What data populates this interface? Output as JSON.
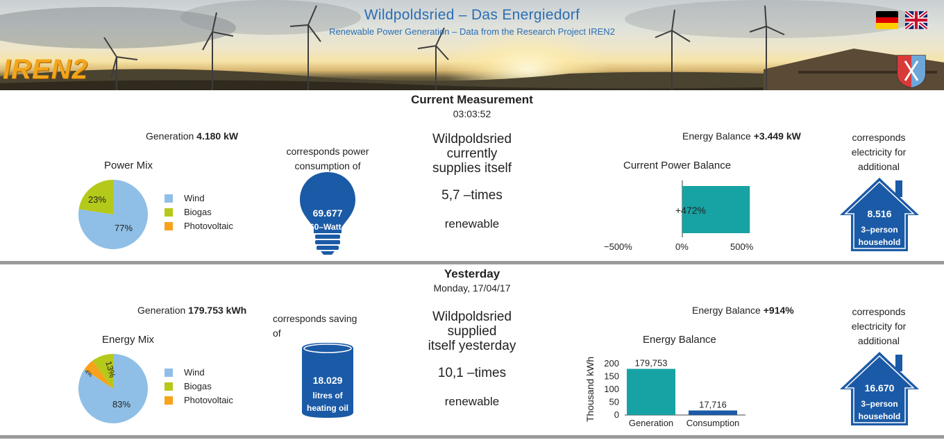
{
  "header": {
    "title": "Wildpoldsried – Das Energiedorf",
    "subtitle": "Renewable Power Generation – Data from the Research Project IREN2",
    "logo_text": "IREN2",
    "languages": [
      "de-flag-icon",
      "uk-flag-icon"
    ]
  },
  "current": {
    "section_title": "Current Measurement",
    "time": "03:03:52",
    "generation_label": "Generation",
    "generation_value": "4.180 kW",
    "mix_title": "Power Mix",
    "pie": [
      {
        "name": "Wind",
        "percent": 77,
        "label": "77%",
        "color": "#8fbfe6"
      },
      {
        "name": "Biogas",
        "percent": 23,
        "label": "23%",
        "color": "#b5c91a"
      },
      {
        "name": "Photovoltaic",
        "percent": 0,
        "label": "",
        "color": "#f7a21b"
      }
    ],
    "legend": [
      "Wind",
      "Biogas",
      "Photovoltaic"
    ],
    "equiv_text_1": "corresponds power",
    "equiv_text_2": "consumption of",
    "bulb_value": "69.677",
    "bulb_unit": "60–Watt",
    "supply_1": "Wildpoldsried",
    "supply_2": "currently",
    "supply_3": "supplies itself",
    "times": "5,7 –times",
    "renewable": "renewable",
    "balance_label": "Energy Balance",
    "balance_value": "+3.449 kW",
    "balance_title": "Current Power Balance",
    "balance_bar_percent": 472,
    "balance_bar_label": "+472%",
    "balance_ticks": [
      "−500%",
      "0%",
      "500%"
    ],
    "house_text_1": "corresponds",
    "house_text_2": "electricity for",
    "house_text_3": "additional",
    "house_value": "8.516",
    "house_unit_1": "3–person",
    "house_unit_2": "household"
  },
  "yesterday": {
    "section_title": "Yesterday",
    "date": "Monday, 17/04/17",
    "generation_label": "Generation",
    "generation_value": "179.753 kWh",
    "mix_title": "Energy Mix",
    "pie": [
      {
        "name": "Wind",
        "percent": 83,
        "label": "83%",
        "color": "#8fbfe6"
      },
      {
        "name": "Biogas",
        "percent": 13,
        "label": "13%",
        "color": "#b5c91a"
      },
      {
        "name": "Photovoltaic",
        "percent": 4,
        "label": "4%",
        "color": "#f7a21b"
      }
    ],
    "legend": [
      "Wind",
      "Biogas",
      "Photovoltaic"
    ],
    "equiv_text_1": "corresponds saving",
    "equiv_text_2": "of",
    "barrel_value": "18.029",
    "barrel_unit_1": "litres of",
    "barrel_unit_2": "heating oil",
    "supply_1": "Wildpoldsried",
    "supply_2": "supplied",
    "supply_3": "itself yesterday",
    "times": "10,1 –times",
    "renewable": "renewable",
    "balance_label": "Energy Balance",
    "balance_value": "+914%",
    "house_text_1": "corresponds",
    "house_text_2": "electricity for",
    "house_text_3": "additional",
    "house_value": "16.670",
    "house_unit_1": "3–person",
    "house_unit_2": "household"
  },
  "chart_data": [
    {
      "type": "bar",
      "title": "Current Power Balance",
      "orientation": "horizontal",
      "categories": [
        ""
      ],
      "values": [
        472
      ],
      "data_labels": [
        "+472%"
      ],
      "xlim": [
        -500,
        500
      ],
      "x_ticks": [
        "−500%",
        "0%",
        "500%"
      ],
      "color": "#17a2a4"
    },
    {
      "type": "bar",
      "title": "Energy Balance",
      "ylabel": "Thousand kWh",
      "categories": [
        "Generation",
        "Consumption"
      ],
      "values": [
        179.753,
        17.716
      ],
      "data_labels": [
        "179,753",
        "17,716"
      ],
      "ylim": [
        0,
        200
      ],
      "y_ticks": [
        "0",
        "50",
        "100",
        "150",
        "200"
      ],
      "colors": [
        "#17a2a4",
        "#1b5aa6"
      ]
    }
  ]
}
